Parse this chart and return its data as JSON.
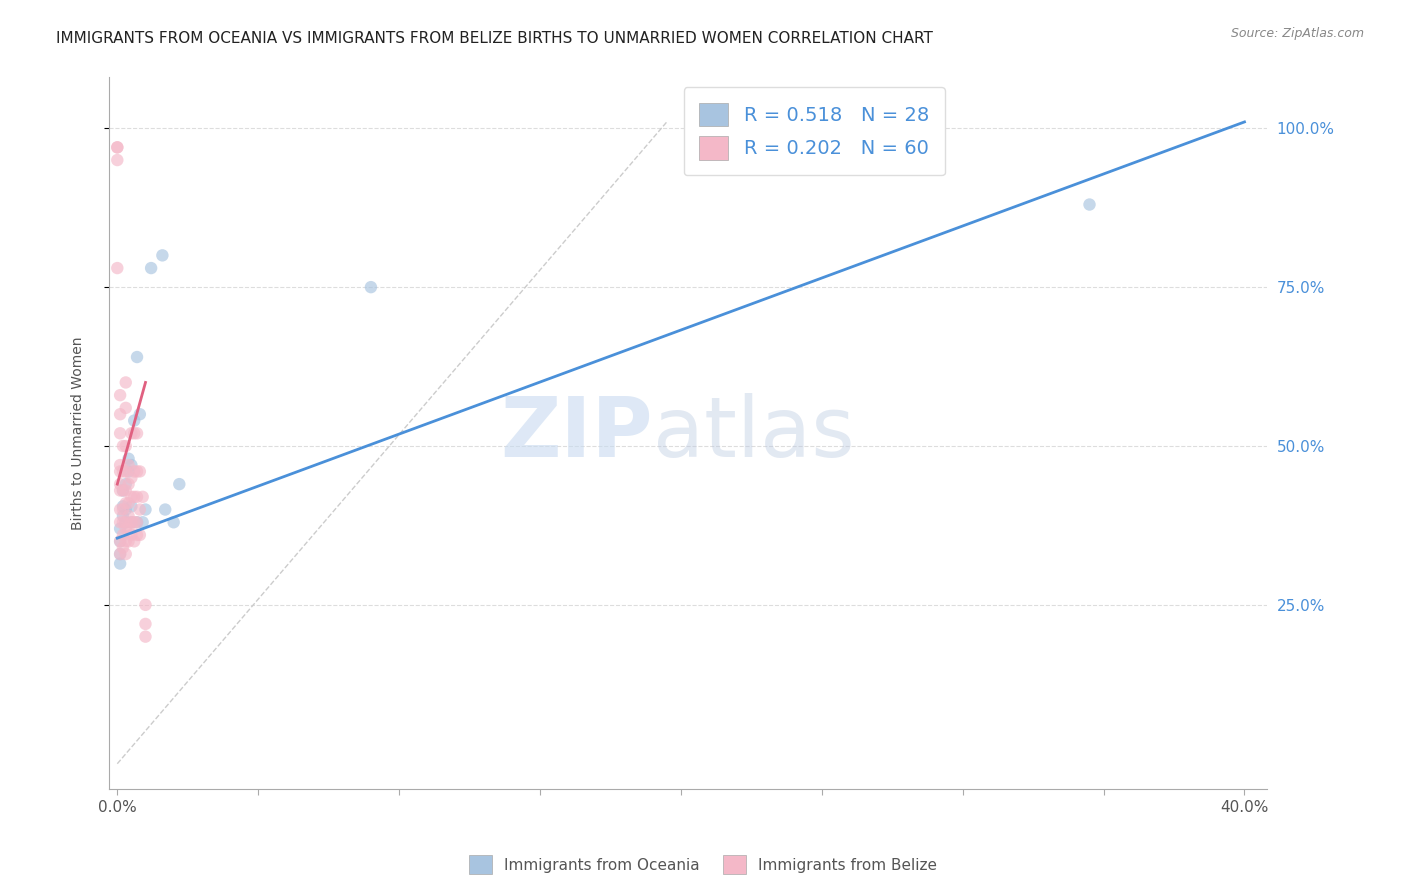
{
  "title": "IMMIGRANTS FROM OCEANIA VS IMMIGRANTS FROM BELIZE BIRTHS TO UNMARRIED WOMEN CORRELATION CHART",
  "source": "Source: ZipAtlas.com",
  "ylabel": "Births to Unmarried Women",
  "y_ticks_right": [
    "25.0%",
    "50.0%",
    "75.0%",
    "100.0%"
  ],
  "legend_blue_r": "R = 0.518",
  "legend_blue_n": "N = 28",
  "legend_pink_r": "R = 0.202",
  "legend_pink_n": "N = 60",
  "blue_scatter_x": [
    0.001,
    0.001,
    0.001,
    0.001,
    0.002,
    0.002,
    0.002,
    0.003,
    0.003,
    0.003,
    0.004,
    0.004,
    0.005,
    0.005,
    0.005,
    0.006,
    0.007,
    0.007,
    0.008,
    0.009,
    0.01,
    0.012,
    0.016,
    0.017,
    0.02,
    0.022,
    0.345,
    0.09
  ],
  "blue_scatter_y": [
    0.315,
    0.33,
    0.35,
    0.37,
    0.39,
    0.405,
    0.43,
    0.38,
    0.4,
    0.44,
    0.46,
    0.48,
    0.47,
    0.38,
    0.405,
    0.54,
    0.64,
    0.38,
    0.55,
    0.38,
    0.4,
    0.78,
    0.8,
    0.4,
    0.38,
    0.44,
    0.88,
    0.75
  ],
  "pink_scatter_x": [
    0.0,
    0.0,
    0.0,
    0.0,
    0.001,
    0.001,
    0.001,
    0.001,
    0.001,
    0.001,
    0.001,
    0.001,
    0.001,
    0.001,
    0.001,
    0.002,
    0.002,
    0.002,
    0.002,
    0.002,
    0.002,
    0.002,
    0.003,
    0.003,
    0.003,
    0.003,
    0.003,
    0.003,
    0.003,
    0.003,
    0.003,
    0.003,
    0.004,
    0.004,
    0.004,
    0.004,
    0.004,
    0.004,
    0.005,
    0.005,
    0.005,
    0.005,
    0.005,
    0.006,
    0.006,
    0.006,
    0.006,
    0.006,
    0.007,
    0.007,
    0.007,
    0.007,
    0.007,
    0.008,
    0.008,
    0.008,
    0.009,
    0.01,
    0.01,
    0.01
  ],
  "pink_scatter_y": [
    0.95,
    0.97,
    0.97,
    0.78,
    0.33,
    0.35,
    0.38,
    0.4,
    0.43,
    0.44,
    0.46,
    0.47,
    0.52,
    0.55,
    0.58,
    0.34,
    0.36,
    0.38,
    0.4,
    0.43,
    0.46,
    0.5,
    0.33,
    0.35,
    0.37,
    0.38,
    0.41,
    0.43,
    0.46,
    0.5,
    0.56,
    0.6,
    0.35,
    0.37,
    0.39,
    0.41,
    0.44,
    0.47,
    0.36,
    0.38,
    0.42,
    0.45,
    0.52,
    0.35,
    0.38,
    0.42,
    0.46,
    0.52,
    0.36,
    0.38,
    0.42,
    0.46,
    0.52,
    0.36,
    0.4,
    0.46,
    0.42,
    0.2,
    0.22,
    0.25
  ],
  "blue_line_x": [
    0.0,
    0.4
  ],
  "blue_line_y": [
    0.355,
    1.01
  ],
  "pink_line_x": [
    0.0,
    0.01
  ],
  "pink_line_y": [
    0.44,
    0.6
  ],
  "blue_color": "#a8c4e0",
  "pink_color": "#f4b8c8",
  "blue_line_color": "#4a90d9",
  "pink_line_color": "#e06080",
  "gray_dashed_line_x": [
    0.0,
    0.195
  ],
  "gray_dashed_line_y": [
    0.0,
    1.01
  ],
  "x_min": -0.003,
  "x_max": 0.408,
  "y_min": -0.04,
  "y_max": 1.08,
  "x_tick_positions": [
    0.0,
    0.05,
    0.1,
    0.15,
    0.2,
    0.25,
    0.3,
    0.35,
    0.4
  ],
  "x_tick_show_labels": [
    true,
    false,
    false,
    false,
    false,
    false,
    false,
    false,
    true
  ],
  "watermark_zip": "ZIP",
  "watermark_atlas": "atlas",
  "scatter_size": 80,
  "scatter_alpha": 0.65,
  "legend_fontsize": 14,
  "title_fontsize": 11
}
